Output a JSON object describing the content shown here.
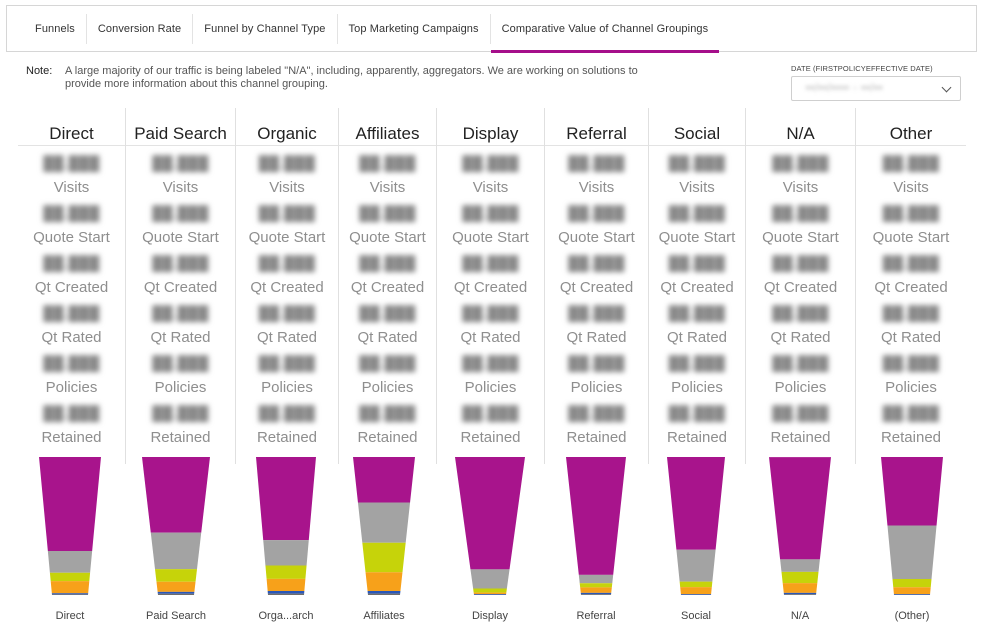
{
  "tabs": [
    {
      "label": "Funnels",
      "active": false
    },
    {
      "label": "Conversion Rate",
      "active": false
    },
    {
      "label": "Funnel by Channel Type",
      "active": false
    },
    {
      "label": "Top Marketing Campaigns",
      "active": false
    },
    {
      "label": "Comparative Value of Channel Groupings",
      "active": true
    }
  ],
  "note": {
    "label": "Note:",
    "text": "A large majority of our traffic is being labeled \"N/A\", including, apparently, aggregators. We are working on solutions to provide more information about this channel grouping."
  },
  "date_filter": {
    "label": "DATE (FIRSTPOLICYEFFECTIVE DATE)",
    "value": "••/••/•••• - ••/••"
  },
  "metric_labels": [
    "Visits",
    "Quote Start",
    "Qt Created",
    "Qt Rated",
    "Policies",
    "Retained"
  ],
  "blurred_value_placeholder": "██,███",
  "channels": [
    {
      "name": "Direct",
      "funnel_label": "Direct",
      "funnel": {
        "visits": 0.78,
        "quote_start": 0.18,
        "qt_created": 0.07,
        "qt_rated": 0.1,
        "policies": 0.01,
        "retained": 0.005,
        "top_width": 0.62,
        "bottom_width": 0.36
      }
    },
    {
      "name": "Paid Search",
      "funnel_label": "Paid Search",
      "funnel": {
        "visits": 0.6,
        "quote_start": 0.29,
        "qt_created": 0.1,
        "qt_rated": 0.08,
        "policies": 0.015,
        "retained": 0.01,
        "top_width": 0.68,
        "bottom_width": 0.36
      }
    },
    {
      "name": "Organic",
      "funnel_label": "Orga...arch",
      "funnel": {
        "visits": 0.62,
        "quote_start": 0.19,
        "qt_created": 0.1,
        "qt_rated": 0.09,
        "policies": 0.02,
        "retained": 0.01,
        "top_width": 0.6,
        "bottom_width": 0.36
      }
    },
    {
      "name": "Affiliates",
      "funnel_label": "Affiliates",
      "funnel": {
        "visits": 0.34,
        "quote_start": 0.3,
        "qt_created": 0.22,
        "qt_rated": 0.14,
        "policies": 0.02,
        "retained": 0.01,
        "top_width": 0.62,
        "bottom_width": 0.32
      }
    },
    {
      "name": "Display",
      "funnel_label": "Display",
      "funnel": {
        "visits": 0.82,
        "quote_start": 0.14,
        "qt_created": 0.03,
        "qt_rated": 0.01,
        "policies": 0.005,
        "retained": 0.002,
        "top_width": 0.7,
        "bottom_width": 0.32
      }
    },
    {
      "name": "Referral",
      "funnel_label": "Referral",
      "funnel": {
        "visits": 0.85,
        "quote_start": 0.06,
        "qt_created": 0.03,
        "qt_rated": 0.04,
        "policies": 0.01,
        "retained": 0.005,
        "top_width": 0.6,
        "bottom_width": 0.3
      }
    },
    {
      "name": "Social",
      "funnel_label": "Social",
      "funnel": {
        "visits": 0.67,
        "quote_start": 0.23,
        "qt_created": 0.04,
        "qt_rated": 0.05,
        "policies": 0.005,
        "retained": 0.002,
        "top_width": 0.58,
        "bottom_width": 0.3
      }
    },
    {
      "name": "N/A",
      "funnel_label": "N/A",
      "funnel": {
        "visits": 0.73,
        "quote_start": 0.09,
        "qt_created": 0.08,
        "qt_rated": 0.07,
        "policies": 0.01,
        "retained": 0.005,
        "top_width": 0.62,
        "bottom_width": 0.32
      }
    },
    {
      "name": "Other",
      "funnel_label": "(Other)",
      "funnel": {
        "visits": 0.5,
        "quote_start": 0.39,
        "qt_created": 0.06,
        "qt_rated": 0.05,
        "policies": 0.005,
        "retained": 0.002,
        "top_width": 0.62,
        "bottom_width": 0.36
      }
    }
  ],
  "colors": {
    "visits": "#a8148c",
    "quote_start": "#a3a3a3",
    "qt_created": "#c6d30a",
    "qt_rated": "#f7a11a",
    "policies": "#2a57b8",
    "retained": "#6d6d6d",
    "accent": "#a50e8a"
  }
}
